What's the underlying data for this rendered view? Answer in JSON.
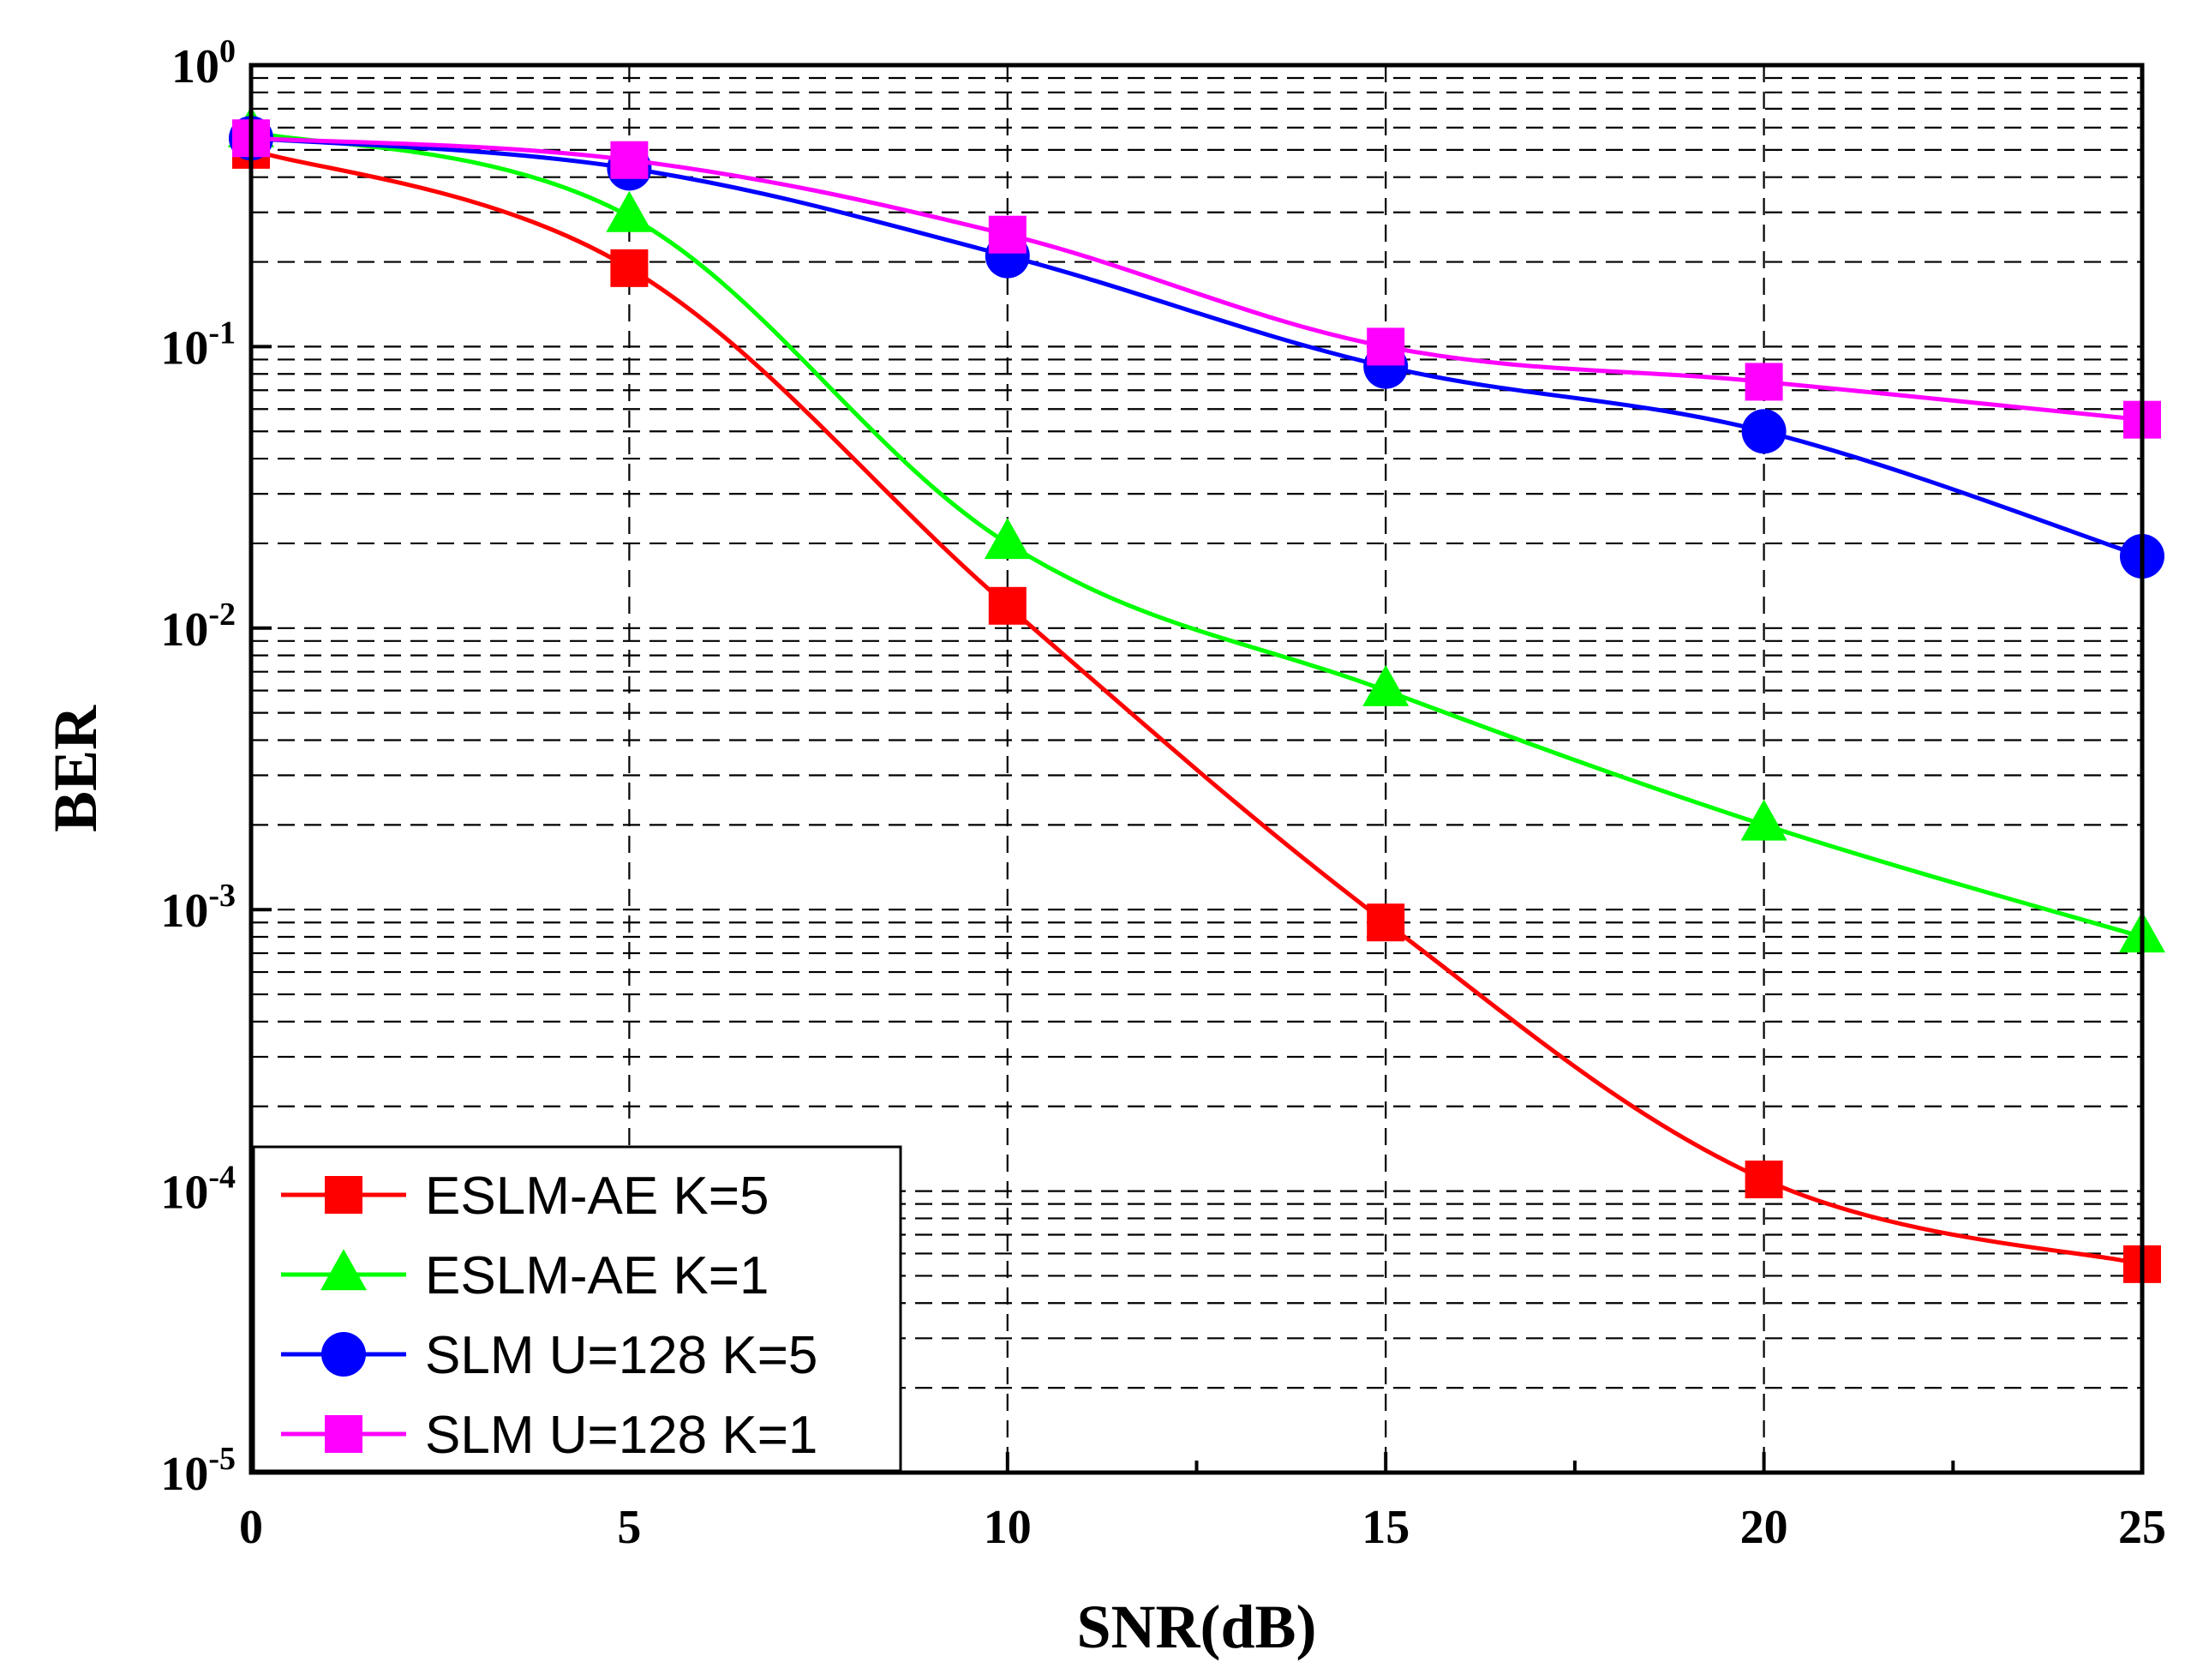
{
  "chart_data": {
    "type": "line",
    "title": "",
    "xlabel": "SNR(dB)",
    "ylabel": "BER",
    "xlim": [
      0,
      25
    ],
    "ylim": [
      1e-05,
      1
    ],
    "yscale": "log",
    "x_ticks": [
      0,
      5,
      10,
      15,
      20,
      25
    ],
    "x_tick_labels": [
      "0",
      "5",
      "10",
      "15",
      "20",
      "25"
    ],
    "y_ticks": [
      {
        "base": "10",
        "exp": "0",
        "value": 1
      },
      {
        "base": "10",
        "exp": "-1",
        "value": 0.1
      },
      {
        "base": "10",
        "exp": "-2",
        "value": 0.01
      },
      {
        "base": "10",
        "exp": "-3",
        "value": 0.001
      },
      {
        "base": "10",
        "exp": "-4",
        "value": 0.0001
      },
      {
        "base": "10",
        "exp": "-5",
        "value": 1e-05
      }
    ],
    "grid": true,
    "legend_position": "bottom-left",
    "x": [
      0,
      5,
      10,
      15,
      20,
      25
    ],
    "series": [
      {
        "name": "ESLM-AE K=5",
        "color": "#ff0000",
        "marker": "square",
        "values": [
          0.5,
          0.19,
          0.012,
          0.0009,
          0.00011,
          5.5e-05
        ]
      },
      {
        "name": "ESLM-AE K=1",
        "color": "#00ff00",
        "marker": "triangle",
        "values": [
          0.58,
          0.29,
          0.02,
          0.006,
          0.002,
          0.0008
        ]
      },
      {
        "name": "SLM U=128 K=5",
        "color": "#0000ff",
        "marker": "circle",
        "values": [
          0.55,
          0.43,
          0.21,
          0.085,
          0.05,
          0.018
        ]
      },
      {
        "name": "SLM U=128 K=1",
        "color": "#ff00ff",
        "marker": "square",
        "values": [
          0.55,
          0.46,
          0.25,
          0.1,
          0.075,
          0.055
        ]
      }
    ]
  }
}
